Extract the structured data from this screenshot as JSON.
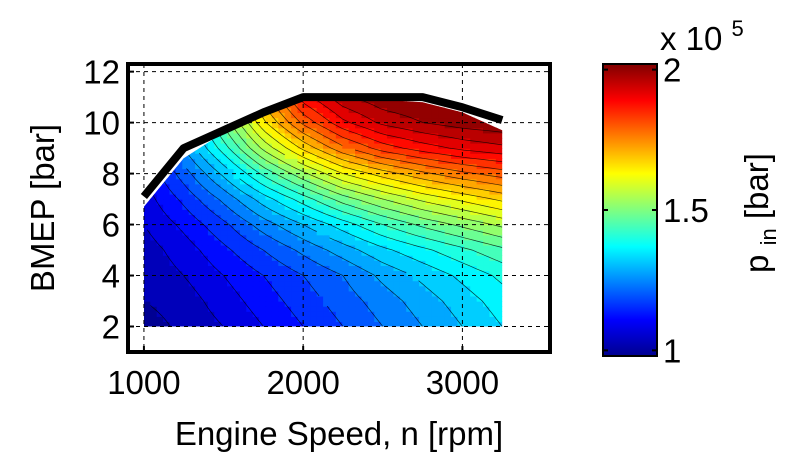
{
  "chart_data": {
    "type": "heatmap",
    "subtype": "filled-contour",
    "xlabel": "Engine Speed, n [rpm]",
    "ylabel": "BMEP [bar]",
    "xlim": [
      900,
      3550
    ],
    "ylim": [
      1,
      12.3
    ],
    "xticks": [
      1000,
      2000,
      3000
    ],
    "yticks": [
      2,
      4,
      6,
      8,
      10,
      12
    ],
    "grid": true,
    "colormap": "jet",
    "colorbar": {
      "label_main": "p",
      "label_sub": "in",
      "label_unit": " [bar]",
      "multiplier": "x 10",
      "multiplier_exp": "5",
      "range": [
        0.98,
        2.02
      ],
      "ticks": [
        "1",
        "1.5",
        "2"
      ],
      "tick_values": [
        1.0,
        1.5,
        2.0
      ]
    },
    "contour_levels": 26,
    "x": [
      1000,
      1250,
      1500,
      1750,
      2000,
      2250,
      2500,
      2750,
      3000,
      3250
    ],
    "y": [
      2,
      3,
      4,
      5,
      6,
      7,
      8,
      9,
      10,
      11
    ],
    "z_bar_e5": [
      [
        1.0,
        1.03,
        1.06,
        1.1,
        1.14,
        1.18,
        1.22,
        1.26,
        1.3,
        1.34
      ],
      [
        1.02,
        1.04,
        1.08,
        1.12,
        1.16,
        1.2,
        1.24,
        1.28,
        1.32,
        1.36
      ],
      [
        1.03,
        1.06,
        1.1,
        1.14,
        1.18,
        1.22,
        1.27,
        1.31,
        1.35,
        1.39
      ],
      [
        1.04,
        1.08,
        1.13,
        1.18,
        1.23,
        1.28,
        1.33,
        1.37,
        1.41,
        1.45
      ],
      [
        1.06,
        1.11,
        1.17,
        1.24,
        1.3,
        1.36,
        1.42,
        1.47,
        1.51,
        1.55
      ],
      [
        1.08,
        1.15,
        1.23,
        1.32,
        1.4,
        1.48,
        1.54,
        1.59,
        1.63,
        1.67
      ],
      [
        1.1,
        1.2,
        1.31,
        1.43,
        1.53,
        1.62,
        1.68,
        1.73,
        1.77,
        1.8
      ],
      [
        1.13,
        1.26,
        1.4,
        1.55,
        1.67,
        1.77,
        1.84,
        1.88,
        1.91,
        1.93
      ],
      [
        1.16,
        1.3,
        1.47,
        1.65,
        1.79,
        1.89,
        1.95,
        1.98,
        2.0,
        2.01
      ],
      [
        1.18,
        1.34,
        1.52,
        1.72,
        1.88,
        1.97,
        2.01,
        2.02,
        2.02,
        2.02
      ]
    ],
    "region_boundary": [
      [
        1000,
        2
      ],
      [
        3250,
        2
      ],
      [
        3250,
        9.7
      ],
      [
        3000,
        10.4
      ],
      [
        2750,
        10.8
      ],
      [
        2500,
        10.9
      ],
      [
        2250,
        10.95
      ],
      [
        2000,
        10.9
      ],
      [
        1750,
        10.3
      ],
      [
        1500,
        9.6
      ],
      [
        1250,
        8.6
      ],
      [
        1000,
        6.7
      ]
    ],
    "full_load_line": {
      "x": [
        1000,
        1250,
        1500,
        1750,
        2000,
        2250,
        2500,
        2750,
        3000,
        3250
      ],
      "y": [
        7.1,
        9.0,
        9.7,
        10.4,
        11.0,
        11.0,
        11.0,
        11.0,
        10.6,
        10.1
      ]
    }
  }
}
